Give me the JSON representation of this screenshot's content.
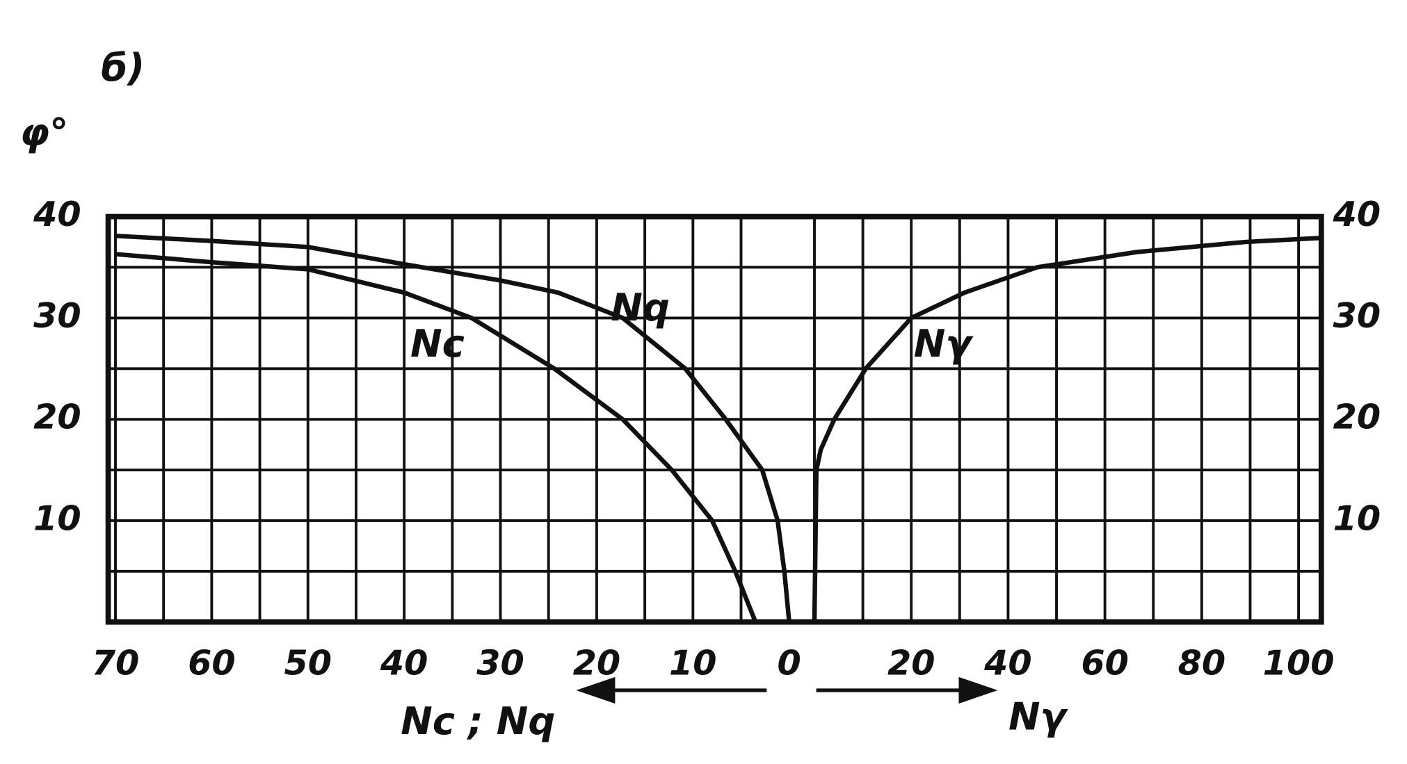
{
  "chart_data": {
    "type": "line",
    "title": "б)",
    "y_label": "φ°",
    "x_label": "Nc ; Nq",
    "x2_label": "Nγ",
    "ylim": [
      0,
      40
    ],
    "yticks": [
      10,
      20,
      30,
      40
    ],
    "ygrid": [
      0,
      5,
      10,
      15,
      20,
      25,
      30,
      35,
      40
    ],
    "xlim": [
      70.75,
      0
    ],
    "xticks": [
      70,
      60,
      50,
      40,
      30,
      20,
      10,
      0
    ],
    "xgrid": [
      70,
      65,
      60,
      55,
      50,
      45,
      40,
      35,
      30,
      25,
      20,
      15,
      10,
      5
    ],
    "x2lim": [
      0,
      104.7
    ],
    "x2ticks": [
      20,
      40,
      60,
      80,
      100
    ],
    "x2grid": [
      0,
      10,
      20,
      30,
      40,
      50,
      60,
      70,
      80,
      90,
      100
    ],
    "grid": true,
    "series": [
      {
        "name": "Nc",
        "color": "#111111",
        "axis": "x",
        "x": [
          70,
          60,
          50,
          40,
          33,
          24.4,
          17.3,
          12.2,
          8,
          5.6,
          3.5
        ],
        "values": [
          36.3,
          35.5,
          34.8,
          32.5,
          30,
          25,
          20,
          15,
          10,
          5,
          0
        ]
      },
      {
        "name": "Nq",
        "color": "#111111",
        "axis": "x",
        "x": [
          70,
          60,
          50,
          40,
          30,
          24,
          17.3,
          10.8,
          6.6,
          2.8,
          1.2,
          0.5,
          0
        ],
        "values": [
          38.1,
          37.6,
          37,
          35.3,
          33.7,
          32.5,
          30,
          25,
          20,
          15,
          10,
          5,
          0
        ]
      },
      {
        "name": "Nγ",
        "color": "#111111",
        "axis": "x2",
        "x": [
          0,
          0.4,
          1.3,
          4.1,
          10.6,
          20,
          31,
          46,
          66.5,
          89,
          104.7
        ],
        "values": [
          0,
          15,
          17,
          20,
          25,
          30,
          32.5,
          35,
          36.5,
          37.5,
          37.9
        ]
      }
    ]
  }
}
